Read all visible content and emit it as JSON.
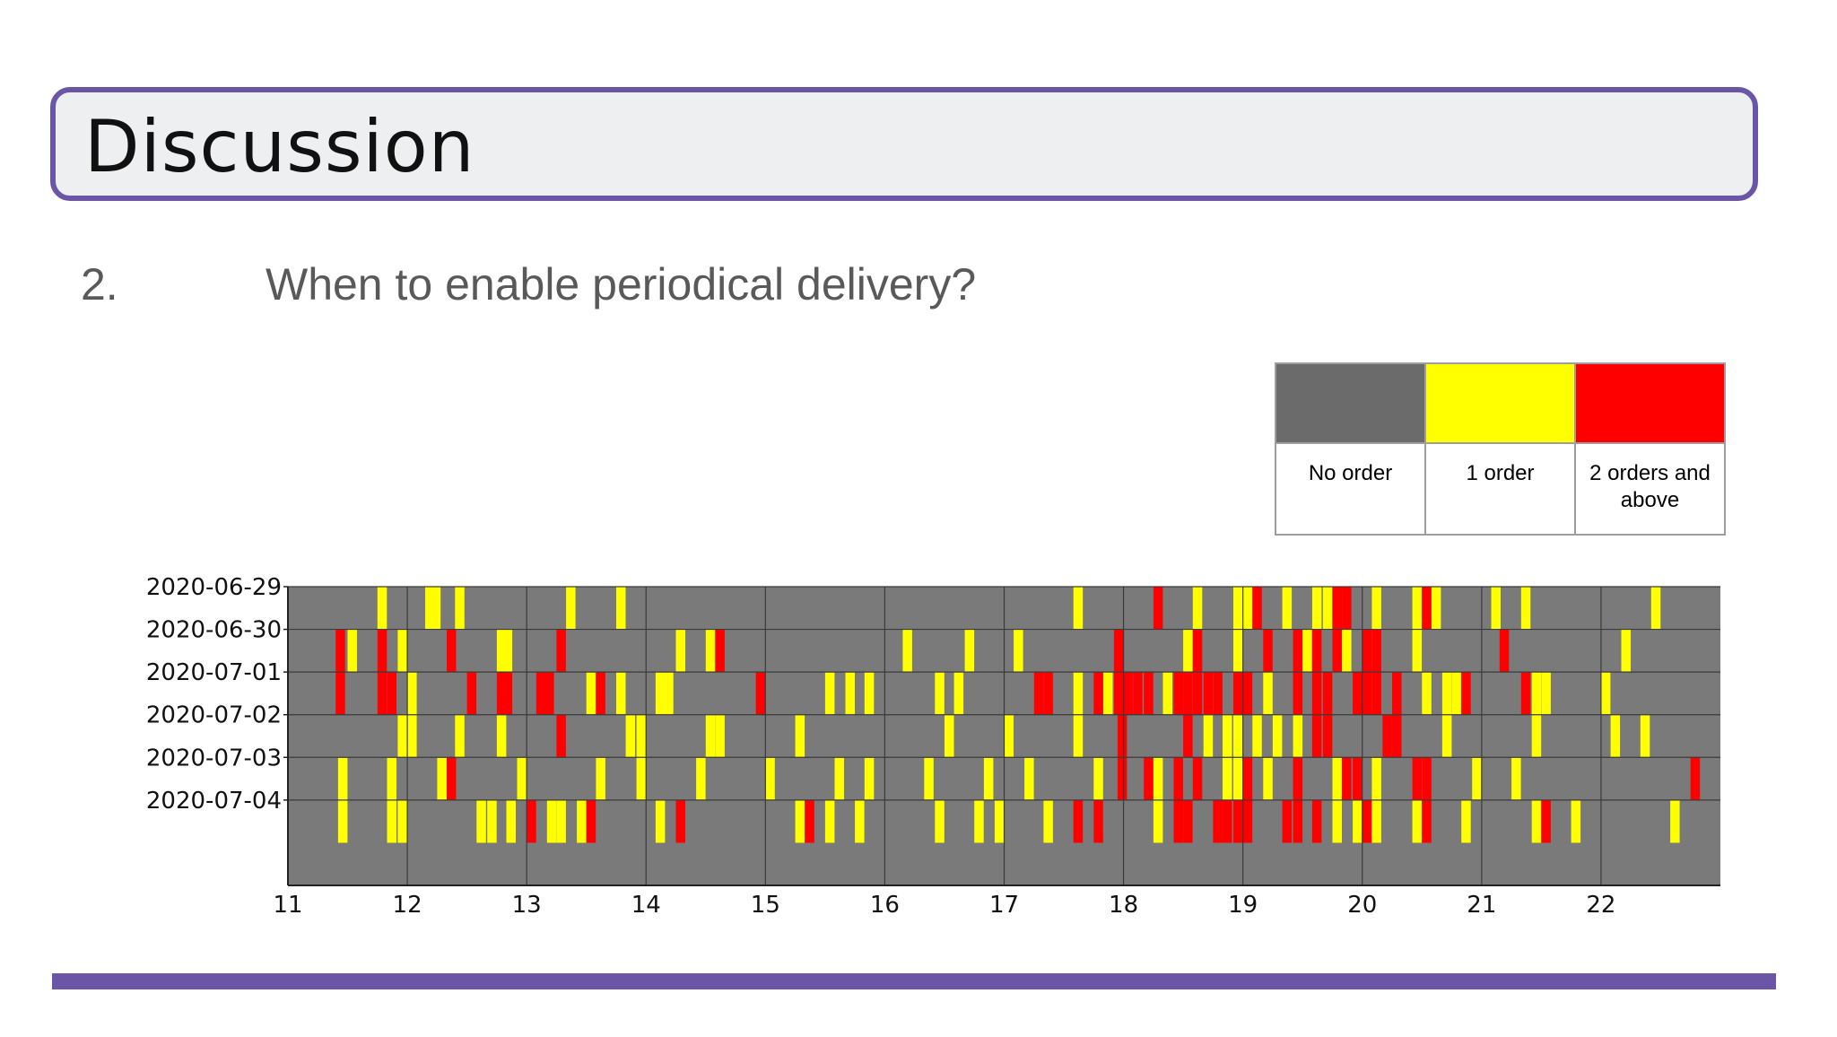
{
  "slide": {
    "title": "Discussion",
    "question_number": "2.",
    "question": "When to enable periodical delivery?"
  },
  "legend": [
    {
      "label": "No order",
      "color": "#6b6b6b"
    },
    {
      "label": "1 order",
      "color": "#ffff00"
    },
    {
      "label": "2 orders and above",
      "color": "#ff0000"
    }
  ],
  "chart_data": {
    "type": "heatmap",
    "title": "",
    "xlabel": "",
    "ylabel": "",
    "xlim": [
      11,
      23
    ],
    "x_ticks": [
      "11",
      "12",
      "13",
      "14",
      "15",
      "16",
      "17",
      "18",
      "19",
      "20",
      "21",
      "22"
    ],
    "rows": [
      "2020-06-29",
      "2020-06-30",
      "2020-07-01",
      "2020-07-02",
      "2020-07-03",
      "2020-07-04"
    ],
    "colors": {
      "0": "#7a7a7a",
      "1": "#ffff00",
      "2": "#ff0000"
    },
    "grid": true,
    "events": [
      [
        [
          11.75,
          1
        ],
        [
          12.15,
          1
        ],
        [
          12.2,
          1
        ],
        [
          12.4,
          1
        ],
        [
          13.33,
          1
        ],
        [
          13.75,
          1
        ],
        [
          17.58,
          1
        ],
        [
          18.25,
          2
        ],
        [
          18.58,
          1
        ],
        [
          18.92,
          1
        ],
        [
          19.0,
          1
        ],
        [
          19.08,
          2
        ],
        [
          19.33,
          1
        ],
        [
          19.58,
          1
        ],
        [
          19.67,
          1
        ],
        [
          19.75,
          2
        ],
        [
          19.83,
          2
        ],
        [
          20.08,
          1
        ],
        [
          20.42,
          1
        ],
        [
          20.5,
          2
        ],
        [
          20.58,
          1
        ],
        [
          21.08,
          1
        ],
        [
          21.33,
          1
        ],
        [
          22.42,
          1
        ]
      ],
      [
        [
          11.4,
          2
        ],
        [
          11.5,
          1
        ],
        [
          11.75,
          2
        ],
        [
          11.92,
          1
        ],
        [
          12.33,
          2
        ],
        [
          12.75,
          1
        ],
        [
          12.8,
          1
        ],
        [
          13.25,
          2
        ],
        [
          14.25,
          1
        ],
        [
          14.5,
          1
        ],
        [
          14.58,
          2
        ],
        [
          16.15,
          1
        ],
        [
          16.67,
          1
        ],
        [
          17.08,
          1
        ],
        [
          17.92,
          2
        ],
        [
          18.5,
          1
        ],
        [
          18.58,
          2
        ],
        [
          18.92,
          1
        ],
        [
          19.17,
          2
        ],
        [
          19.42,
          2
        ],
        [
          19.5,
          1
        ],
        [
          19.58,
          2
        ],
        [
          19.75,
          2
        ],
        [
          19.83,
          1
        ],
        [
          20.0,
          2
        ],
        [
          20.08,
          2
        ],
        [
          20.42,
          1
        ],
        [
          21.15,
          2
        ],
        [
          22.17,
          1
        ]
      ],
      [
        [
          11.4,
          2
        ],
        [
          11.75,
          2
        ],
        [
          11.83,
          2
        ],
        [
          12.0,
          1
        ],
        [
          12.5,
          2
        ],
        [
          12.75,
          2
        ],
        [
          12.8,
          2
        ],
        [
          13.08,
          2
        ],
        [
          13.15,
          2
        ],
        [
          13.5,
          1
        ],
        [
          13.58,
          2
        ],
        [
          13.75,
          1
        ],
        [
          14.08,
          1
        ],
        [
          14.15,
          1
        ],
        [
          14.92,
          2
        ],
        [
          15.5,
          1
        ],
        [
          15.67,
          1
        ],
        [
          15.83,
          1
        ],
        [
          16.42,
          1
        ],
        [
          16.58,
          1
        ],
        [
          17.25,
          2
        ],
        [
          17.33,
          2
        ],
        [
          17.58,
          1
        ],
        [
          17.75,
          2
        ],
        [
          17.83,
          1
        ],
        [
          17.92,
          2
        ],
        [
          18.0,
          2
        ],
        [
          18.08,
          2
        ],
        [
          18.17,
          2
        ],
        [
          18.33,
          1
        ],
        [
          18.42,
          2
        ],
        [
          18.5,
          2
        ],
        [
          18.58,
          2
        ],
        [
          18.67,
          2
        ],
        [
          18.75,
          2
        ],
        [
          18.92,
          2
        ],
        [
          19.0,
          2
        ],
        [
          19.17,
          1
        ],
        [
          19.42,
          2
        ],
        [
          19.58,
          2
        ],
        [
          19.67,
          2
        ],
        [
          19.92,
          2
        ],
        [
          20.0,
          2
        ],
        [
          20.08,
          2
        ],
        [
          20.25,
          2
        ],
        [
          20.5,
          1
        ],
        [
          20.67,
          1
        ],
        [
          20.75,
          1
        ],
        [
          20.83,
          2
        ],
        [
          21.33,
          2
        ],
        [
          21.42,
          1
        ],
        [
          21.5,
          1
        ],
        [
          22.0,
          1
        ]
      ],
      [
        [
          11.92,
          1
        ],
        [
          12.0,
          1
        ],
        [
          12.4,
          1
        ],
        [
          12.75,
          1
        ],
        [
          13.25,
          2
        ],
        [
          13.83,
          1
        ],
        [
          13.92,
          1
        ],
        [
          14.5,
          1
        ],
        [
          14.58,
          1
        ],
        [
          15.25,
          1
        ],
        [
          16.5,
          1
        ],
        [
          17.0,
          1
        ],
        [
          17.58,
          1
        ],
        [
          17.95,
          2
        ],
        [
          18.5,
          2
        ],
        [
          18.67,
          1
        ],
        [
          18.83,
          1
        ],
        [
          18.92,
          1
        ],
        [
          19.08,
          1
        ],
        [
          19.25,
          1
        ],
        [
          19.42,
          1
        ],
        [
          19.58,
          2
        ],
        [
          19.67,
          2
        ],
        [
          20.17,
          2
        ],
        [
          20.25,
          2
        ],
        [
          20.67,
          1
        ],
        [
          21.42,
          1
        ],
        [
          22.08,
          1
        ],
        [
          22.33,
          1
        ]
      ],
      [
        [
          11.42,
          1
        ],
        [
          11.83,
          1
        ],
        [
          12.25,
          1
        ],
        [
          12.33,
          2
        ],
        [
          12.92,
          1
        ],
        [
          13.58,
          1
        ],
        [
          13.92,
          1
        ],
        [
          14.42,
          1
        ],
        [
          15.0,
          1
        ],
        [
          15.58,
          1
        ],
        [
          15.83,
          1
        ],
        [
          16.33,
          1
        ],
        [
          16.83,
          1
        ],
        [
          17.17,
          1
        ],
        [
          17.75,
          1
        ],
        [
          17.95,
          2
        ],
        [
          18.17,
          2
        ],
        [
          18.25,
          1
        ],
        [
          18.42,
          2
        ],
        [
          18.58,
          2
        ],
        [
          18.83,
          1
        ],
        [
          18.92,
          1
        ],
        [
          19.0,
          2
        ],
        [
          19.17,
          1
        ],
        [
          19.42,
          2
        ],
        [
          19.75,
          1
        ],
        [
          19.83,
          2
        ],
        [
          19.92,
          2
        ],
        [
          20.08,
          1
        ],
        [
          20.42,
          2
        ],
        [
          20.5,
          2
        ],
        [
          20.92,
          1
        ],
        [
          21.25,
          1
        ],
        [
          22.75,
          2
        ]
      ],
      [
        [
          11.42,
          1
        ],
        [
          11.83,
          1
        ],
        [
          11.92,
          1
        ],
        [
          12.58,
          1
        ],
        [
          12.67,
          1
        ],
        [
          12.83,
          1
        ],
        [
          13.0,
          2
        ],
        [
          13.17,
          1
        ],
        [
          13.25,
          1
        ],
        [
          13.42,
          1
        ],
        [
          13.5,
          2
        ],
        [
          14.08,
          1
        ],
        [
          14.25,
          2
        ],
        [
          15.25,
          1
        ],
        [
          15.33,
          2
        ],
        [
          15.5,
          1
        ],
        [
          15.75,
          1
        ],
        [
          16.42,
          1
        ],
        [
          16.75,
          1
        ],
        [
          16.92,
          1
        ],
        [
          17.33,
          1
        ],
        [
          17.58,
          2
        ],
        [
          17.75,
          2
        ],
        [
          18.25,
          1
        ],
        [
          18.42,
          2
        ],
        [
          18.5,
          2
        ],
        [
          18.75,
          2
        ],
        [
          18.83,
          2
        ],
        [
          18.92,
          2
        ],
        [
          19.0,
          2
        ],
        [
          19.33,
          2
        ],
        [
          19.42,
          2
        ],
        [
          19.58,
          2
        ],
        [
          19.75,
          1
        ],
        [
          19.92,
          1
        ],
        [
          20.0,
          2
        ],
        [
          20.08,
          1
        ],
        [
          20.42,
          1
        ],
        [
          20.5,
          2
        ],
        [
          20.83,
          1
        ],
        [
          21.42,
          1
        ],
        [
          21.5,
          2
        ],
        [
          21.75,
          1
        ],
        [
          22.58,
          1
        ]
      ]
    ]
  }
}
